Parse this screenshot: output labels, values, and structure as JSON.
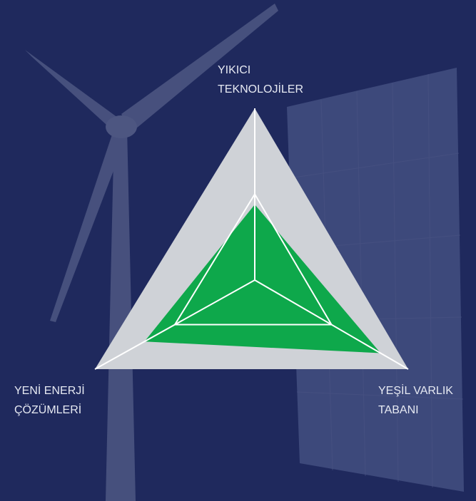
{
  "chart_data": {
    "type": "radar",
    "categories": [
      [
        "YIKICI",
        "TEKNOLOJİLER"
      ],
      [
        "YEŞİL VARLIK",
        "TABANI"
      ],
      [
        "YENİ ENERJİ",
        "ÇÖZÜMLERİ"
      ]
    ],
    "values": [
      44,
      82,
      69
    ],
    "color": "#0ea84b",
    "background_color": "#cfd2d7",
    "rlim": [
      0,
      100
    ],
    "rticks": [
      50,
      100
    ]
  }
}
